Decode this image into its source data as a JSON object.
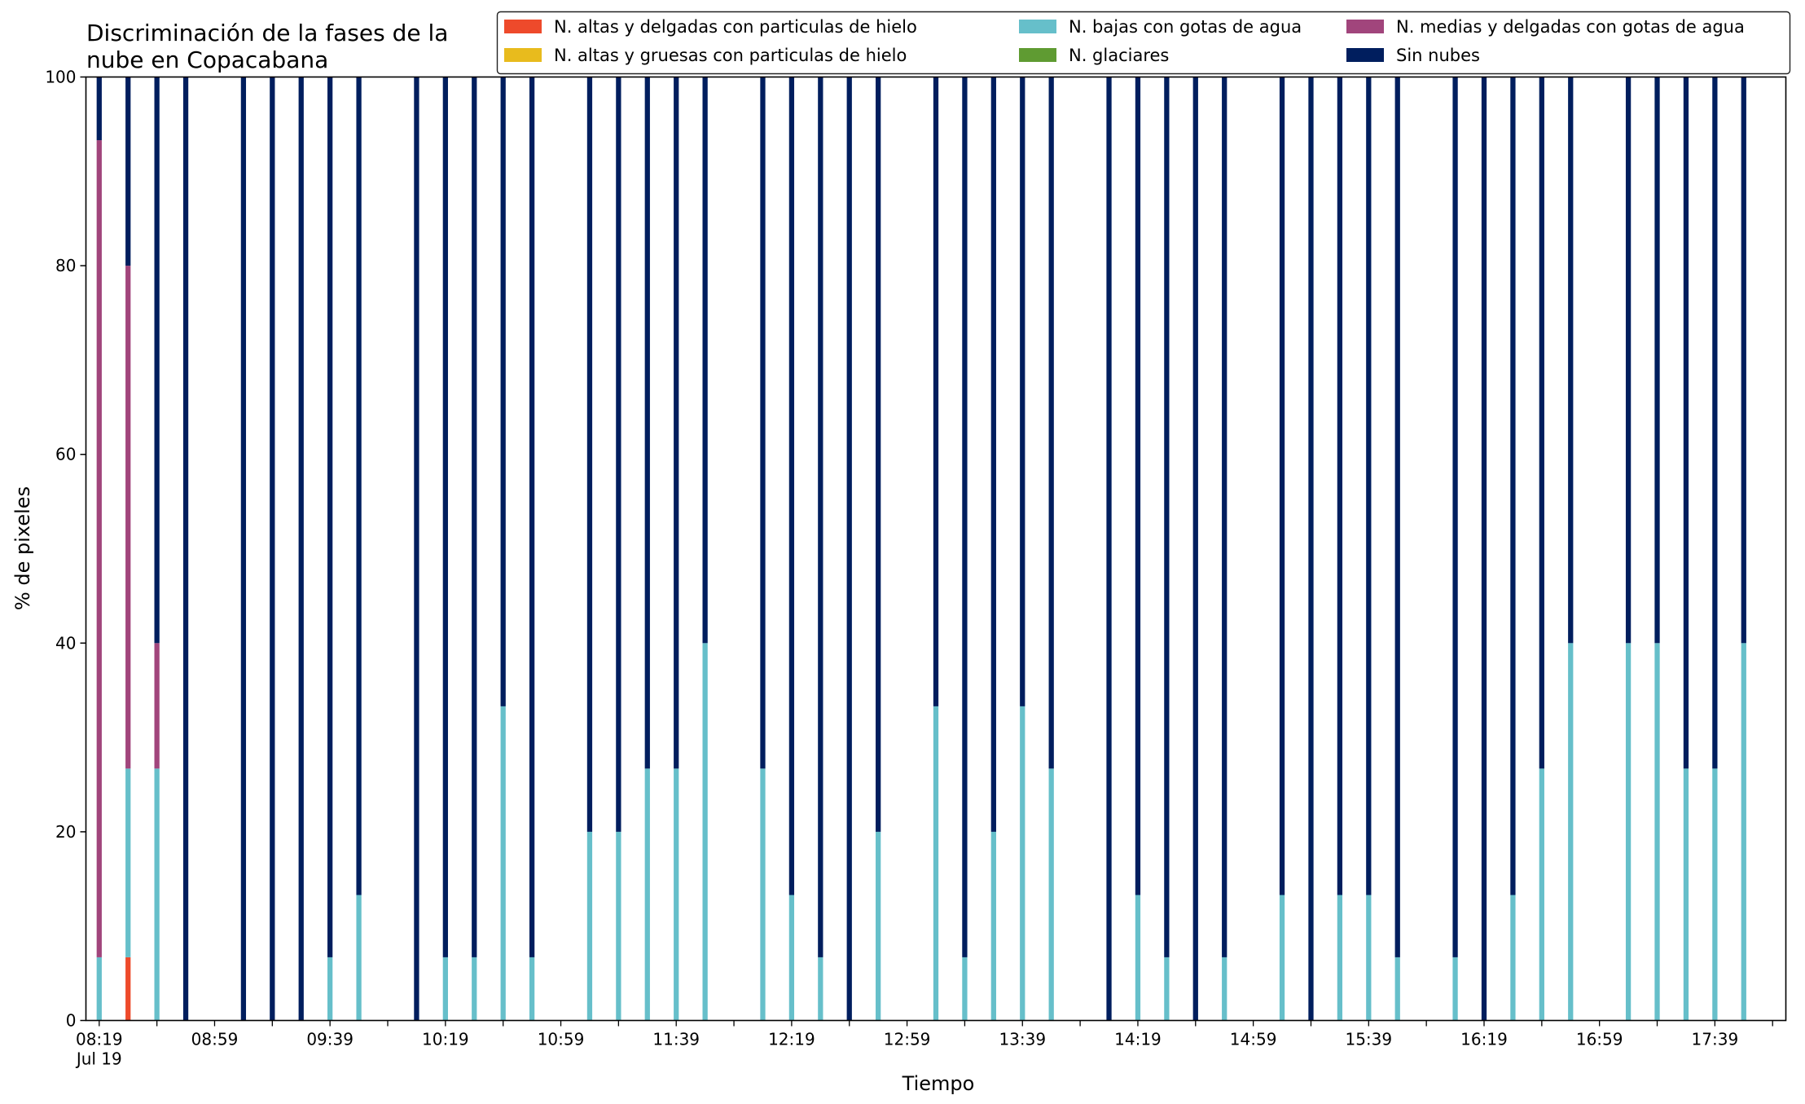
{
  "chart_data": {
    "type": "bar",
    "stacked": true,
    "title": "Discriminación de la fases de la nube en Copacabana",
    "title_lines": [
      "Discriminación de la fases de la",
      "nube en Copacabana"
    ],
    "xlabel": "Tiempo",
    "ylabel": "% de pixeles",
    "ylim": [
      0,
      100
    ],
    "yticks": [
      0,
      20,
      40,
      60,
      80,
      100
    ],
    "xlim_minutes_from_0819": [
      -4.6,
      584.6
    ],
    "bar_interval_minutes": 10,
    "legend": {
      "placement": "top-right",
      "columns": 3
    },
    "x_tick_labels": [
      {
        "label": "08:19",
        "sub": "Jul 19",
        "minute": 0
      },
      {
        "label": "08:59",
        "minute": 40
      },
      {
        "label": "09:39",
        "minute": 80
      },
      {
        "label": "10:19",
        "minute": 120
      },
      {
        "label": "10:59",
        "minute": 160
      },
      {
        "label": "11:39",
        "minute": 200
      },
      {
        "label": "12:19",
        "minute": 240
      },
      {
        "label": "12:59",
        "minute": 280
      },
      {
        "label": "13:39",
        "minute": 320
      },
      {
        "label": "14:19",
        "minute": 360
      },
      {
        "label": "14:59",
        "minute": 400
      },
      {
        "label": "15:39",
        "minute": 440
      },
      {
        "label": "16:19",
        "minute": 480
      },
      {
        "label": "16:59",
        "minute": 520
      },
      {
        "label": "17:39",
        "minute": 560
      }
    ],
    "series": [
      {
        "name": "N. altas y delgadas con particulas de hielo",
        "color": "#ee4a2b"
      },
      {
        "name": "N. altas y gruesas con particulas de hielo",
        "color": "#e8bb1d"
      },
      {
        "name": "N. bajas con gotas de agua",
        "color": "#66bfca"
      },
      {
        "name": "N. glaciares",
        "color": "#5f9b32"
      },
      {
        "name": "N. medias y delgadas con gotas de agua",
        "color": "#a1457c"
      },
      {
        "name": "Sin nubes",
        "color": "#001e5e"
      }
    ],
    "bars": [
      {
        "time": "08:19",
        "values": [
          0,
          0,
          6.7,
          0,
          86.6,
          6.7
        ]
      },
      {
        "time": "08:29",
        "values": [
          6.7,
          0,
          20,
          0,
          53.3,
          20
        ]
      },
      {
        "time": "08:39",
        "values": [
          0,
          0,
          26.7,
          0,
          13.3,
          60
        ]
      },
      {
        "time": "08:49",
        "values": [
          0,
          0,
          0,
          0,
          0,
          100
        ]
      },
      {
        "time": "09:09",
        "values": [
          0,
          0,
          0,
          0,
          0,
          100
        ]
      },
      {
        "time": "09:19",
        "values": [
          0,
          0,
          0,
          0,
          0,
          100
        ]
      },
      {
        "time": "09:29",
        "values": [
          0,
          0,
          0,
          0,
          0,
          100
        ]
      },
      {
        "time": "09:39",
        "values": [
          0,
          0,
          6.7,
          0,
          0,
          93.3
        ]
      },
      {
        "time": "09:49",
        "values": [
          0,
          0,
          13.3,
          0,
          0,
          86.7
        ]
      },
      {
        "time": "10:09",
        "values": [
          0,
          0,
          0,
          0,
          0,
          100
        ]
      },
      {
        "time": "10:19",
        "values": [
          0,
          0,
          6.7,
          0,
          0,
          93.3
        ]
      },
      {
        "time": "10:29",
        "values": [
          0,
          0,
          6.7,
          0,
          0,
          93.3
        ]
      },
      {
        "time": "10:39",
        "values": [
          0,
          0,
          33.3,
          0,
          0,
          66.7
        ]
      },
      {
        "time": "10:49",
        "values": [
          0,
          0,
          6.7,
          0,
          0,
          93.3
        ]
      },
      {
        "time": "11:09",
        "values": [
          0,
          0,
          20,
          0,
          0,
          80
        ]
      },
      {
        "time": "11:19",
        "values": [
          0,
          0,
          20,
          0,
          0,
          80
        ]
      },
      {
        "time": "11:29",
        "values": [
          0,
          0,
          26.7,
          0,
          0,
          73.3
        ]
      },
      {
        "time": "11:39",
        "values": [
          0,
          0,
          26.7,
          0,
          0,
          73.3
        ]
      },
      {
        "time": "11:49",
        "values": [
          0,
          0,
          40,
          0,
          0,
          60
        ]
      },
      {
        "time": "12:09",
        "values": [
          0,
          0,
          26.7,
          0,
          0,
          73.3
        ]
      },
      {
        "time": "12:19",
        "values": [
          0,
          0,
          13.3,
          0,
          0,
          86.7
        ]
      },
      {
        "time": "12:29",
        "values": [
          0,
          0,
          6.7,
          0,
          0,
          93.3
        ]
      },
      {
        "time": "12:39",
        "values": [
          0,
          0,
          0,
          0,
          0,
          100
        ]
      },
      {
        "time": "12:49",
        "values": [
          0,
          0,
          20,
          0,
          0,
          80
        ]
      },
      {
        "time": "13:09",
        "values": [
          0,
          0,
          33.3,
          0,
          0,
          66.7
        ]
      },
      {
        "time": "13:19",
        "values": [
          0,
          0,
          6.7,
          0,
          0,
          93.3
        ]
      },
      {
        "time": "13:29",
        "values": [
          0,
          0,
          20,
          0,
          0,
          80
        ]
      },
      {
        "time": "13:39",
        "values": [
          0,
          0,
          33.3,
          0,
          0,
          66.7
        ]
      },
      {
        "time": "13:49",
        "values": [
          0,
          0,
          26.7,
          0,
          0,
          73.3
        ]
      },
      {
        "time": "14:09",
        "values": [
          0,
          0,
          0,
          0,
          0,
          100
        ]
      },
      {
        "time": "14:19",
        "values": [
          0,
          0,
          13.3,
          0,
          0,
          86.7
        ]
      },
      {
        "time": "14:29",
        "values": [
          0,
          0,
          6.7,
          0,
          0,
          93.3
        ]
      },
      {
        "time": "14:39",
        "values": [
          0,
          0,
          0,
          0,
          0,
          100
        ]
      },
      {
        "time": "14:49",
        "values": [
          0,
          0,
          6.7,
          0,
          0,
          93.3
        ]
      },
      {
        "time": "15:09",
        "values": [
          0,
          0,
          13.3,
          0,
          0,
          86.7
        ]
      },
      {
        "time": "15:19",
        "values": [
          0,
          0,
          0,
          0,
          0,
          100
        ]
      },
      {
        "time": "15:29",
        "values": [
          0,
          0,
          13.3,
          0,
          0,
          86.7
        ]
      },
      {
        "time": "15:39",
        "values": [
          0,
          0,
          13.3,
          0,
          0,
          86.7
        ]
      },
      {
        "time": "15:49",
        "values": [
          0,
          0,
          6.7,
          0,
          0,
          93.3
        ]
      },
      {
        "time": "16:09",
        "values": [
          0,
          0,
          6.7,
          0,
          0,
          93.3
        ]
      },
      {
        "time": "16:19",
        "values": [
          0,
          0,
          0,
          0,
          0,
          100
        ]
      },
      {
        "time": "16:29",
        "values": [
          0,
          0,
          13.3,
          0,
          0,
          86.7
        ]
      },
      {
        "time": "16:39",
        "values": [
          0,
          0,
          26.7,
          0,
          0,
          73.3
        ]
      },
      {
        "time": "16:49",
        "values": [
          0,
          0,
          40,
          0,
          0,
          60
        ]
      },
      {
        "time": "17:09",
        "values": [
          0,
          0,
          40,
          0,
          0,
          60
        ]
      },
      {
        "time": "17:19",
        "values": [
          0,
          0,
          40,
          0,
          0,
          60
        ]
      },
      {
        "time": "17:29",
        "values": [
          0,
          0,
          26.7,
          0,
          0,
          73.3
        ]
      },
      {
        "time": "17:39",
        "values": [
          0,
          0,
          26.7,
          0,
          0,
          73.3
        ]
      },
      {
        "time": "17:49",
        "values": [
          0,
          0,
          40,
          0,
          0,
          60
        ]
      }
    ]
  }
}
